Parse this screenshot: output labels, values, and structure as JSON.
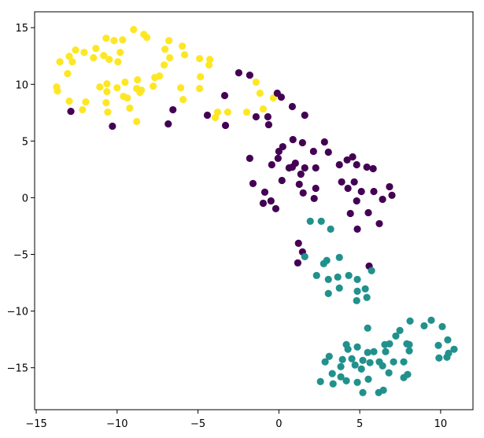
{
  "chart_data": {
    "type": "scatter",
    "xlim": [
      -15.1,
      12.0
    ],
    "ylim": [
      -18.7,
      16.4
    ],
    "xticks": [
      {
        "value": -15,
        "label": "−15"
      },
      {
        "value": -10,
        "label": "−10"
      },
      {
        "value": -5,
        "label": "−5"
      },
      0,
      5,
      10
    ],
    "yticks": [
      {
        "value": -15,
        "label": "−15"
      },
      {
        "value": -10,
        "label": "−10"
      },
      {
        "value": -5,
        "label": "−5"
      },
      0,
      5,
      10,
      15
    ],
    "series": [
      {
        "color": "#fde725",
        "x": [
          -8.98,
          -8.16,
          -8.35,
          -6.8,
          -5.97,
          -10.68,
          -10.19,
          -9.66,
          -11.31,
          -12.57,
          -12.04,
          -12.96,
          -13.54,
          -12.77,
          -10.83,
          -10.49,
          -9.81,
          -9.95,
          -7.04,
          -6.75,
          -5.83,
          -4.9,
          -4.27,
          -4.32,
          -7.09,
          -11.46,
          -13.06,
          -13.74,
          -13.69,
          -11.07,
          -10.63,
          -9.51,
          -8.74,
          -7.67,
          -7.38,
          -10.63,
          -10.0,
          -8.79,
          -8.5,
          -8.59,
          -9.37,
          -9.61,
          -7.77,
          -6.07,
          -4.85,
          -4.9,
          -5.92,
          -3.79,
          -3.16,
          -3.93,
          -12.96,
          -11.94,
          -12.14,
          -10.68,
          -10.58,
          -9.22,
          -8.79,
          -1.99,
          -1.41,
          -1.17,
          -0.97,
          -0.34
        ],
        "y": [
          14.83,
          14.14,
          14.41,
          13.86,
          13.37,
          14.07,
          13.86,
          13.93,
          13.17,
          13.03,
          12.82,
          12.47,
          11.99,
          11.99,
          12.54,
          12.2,
          12.82,
          11.99,
          13.1,
          12.34,
          12.61,
          12.27,
          12.2,
          11.71,
          11.71,
          12.34,
          10.95,
          9.77,
          9.42,
          9.77,
          10.05,
          10.19,
          10.4,
          10.6,
          10.74,
          9.36,
          9.7,
          9.63,
          9.49,
          9.29,
          8.8,
          8.94,
          9.84,
          9.7,
          10.67,
          9.63,
          8.66,
          7.55,
          7.55,
          7.07,
          8.52,
          8.45,
          7.76,
          8.39,
          7.55,
          7.9,
          6.72,
          7.55,
          10.19,
          9.22,
          7.83,
          8.8
        ]
      },
      {
        "color": "#440154",
        "x": [
          -2.48,
          -1.8,
          -0.1,
          0.15,
          0.83,
          1.6,
          -1.41,
          -0.68,
          -0.63,
          -3.35,
          -3.3,
          -4.42,
          -6.55,
          -6.84,
          -12.86,
          -10.29,
          0.87,
          0.24,
          0.0,
          1.46,
          2.14,
          2.82,
          3.06,
          4.22,
          4.56,
          4.81,
          5.44,
          5.83,
          3.74,
          -0.05,
          -0.44,
          0.63,
          1.02,
          0.83,
          1.6,
          1.36,
          2.28,
          -1.8,
          -1.6,
          0.19,
          1.26,
          1.5,
          2.28,
          2.18,
          -0.87,
          -0.49,
          -0.97,
          -0.19,
          3.88,
          4.27,
          4.66,
          5.1,
          5.87,
          6.84,
          6.99,
          6.41,
          4.81,
          4.42,
          5.53,
          6.21,
          4.85,
          1.21,
          1.46,
          1.17,
          5.58
        ],
        "y": [
          11.02,
          10.81,
          9.22,
          8.87,
          8.04,
          7.28,
          7.14,
          7.14,
          6.44,
          9.01,
          6.38,
          7.28,
          7.76,
          6.51,
          7.62,
          6.31,
          5.13,
          4.5,
          4.09,
          4.85,
          4.09,
          4.92,
          4.02,
          3.33,
          3.6,
          2.91,
          2.7,
          2.56,
          2.91,
          3.47,
          2.91,
          2.63,
          3.05,
          2.7,
          2.63,
          2.08,
          2.63,
          3.47,
          1.25,
          1.52,
          1.18,
          0.42,
          0.83,
          -0.07,
          0.49,
          -0.28,
          -0.49,
          -0.97,
          1.39,
          0.83,
          1.39,
          0.55,
          0.55,
          0.97,
          0.21,
          -0.14,
          -0.28,
          -1.39,
          -1.32,
          -2.29,
          -2.77,
          -4.02,
          -4.78,
          -5.75,
          -6.03
        ]
      },
      {
        "color": "#21918c",
        "x": [
          1.94,
          2.62,
          3.2,
          1.6,
          2.77,
          2.96,
          3.74,
          2.33,
          3.06,
          3.64,
          4.32,
          4.85,
          5.73,
          3.74,
          3.06,
          4.85,
          5.34,
          5.44,
          4.81,
          9.42,
          8.11,
          8.98,
          10.1,
          7.48,
          5.49,
          7.23,
          6.55,
          6.84,
          7.91,
          8.06,
          10.44,
          9.86,
          10.83,
          10.49,
          9.9,
          10.39,
          4.17,
          4.27,
          4.85,
          5.49,
          5.87,
          6.6,
          3.11,
          2.86,
          3.93,
          4.51,
          5.19,
          5.63,
          6.21,
          7.09,
          7.72,
          8.06,
          3.83,
          4.71,
          5.1,
          6.41,
          6.8,
          7.72,
          7.96,
          3.3,
          3.83,
          4.17,
          4.85,
          5.53,
          2.57,
          5.19,
          6.17,
          6.46,
          3.35
        ],
        "y": [
          -2.08,
          -2.08,
          -2.77,
          -5.2,
          -5.82,
          -5.54,
          -5.27,
          -6.86,
          -7.21,
          -7.0,
          -6.86,
          -7.21,
          -6.44,
          -7.97,
          -8.45,
          -8.25,
          -8.04,
          -8.8,
          -9.08,
          -10.81,
          -10.88,
          -11.3,
          -11.37,
          -11.71,
          -11.5,
          -12.2,
          -12.96,
          -12.89,
          -12.89,
          -12.96,
          -12.54,
          -13.03,
          -13.37,
          -13.72,
          -14.14,
          -14.07,
          -12.96,
          -13.37,
          -13.17,
          -13.65,
          -13.58,
          -13.58,
          -14.0,
          -14.48,
          -14.28,
          -14.21,
          -14.35,
          -14.55,
          -14.48,
          -14.48,
          -14.48,
          -13.51,
          -14.9,
          -14.76,
          -15.11,
          -14.83,
          -15.45,
          -15.87,
          -15.59,
          -15.52,
          -15.8,
          -16.15,
          -16.29,
          -16.01,
          -16.22,
          -17.19,
          -17.19,
          -16.98,
          -16.42
        ]
      }
    ]
  }
}
